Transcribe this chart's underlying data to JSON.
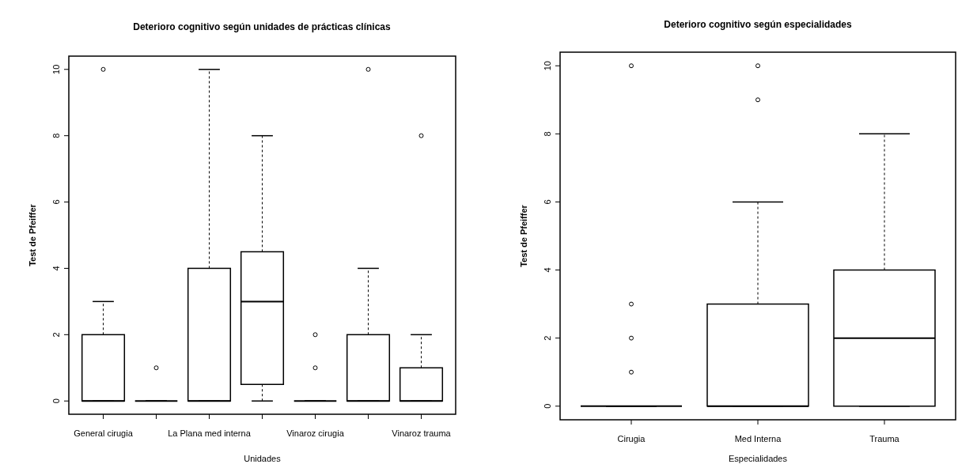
{
  "chart_data": [
    {
      "type": "box",
      "title": "Deterioro cognitivo según unidades de prácticas clínicas",
      "xlabel": "Unidades",
      "ylabel": "Test de Pfeiffer",
      "categories": [
        "General cirugia",
        null,
        "La Plana med interna",
        null,
        "Vinaroz cirugia",
        null,
        "Vinaroz trauma"
      ],
      "ylim": [
        -0.4,
        10.4
      ],
      "yticks": [
        0,
        2,
        4,
        6,
        8,
        10
      ],
      "grid": false,
      "marker": "circle",
      "boxes": [
        {
          "low": 0,
          "q1": 0,
          "median": 0,
          "q3": 2,
          "high": 3,
          "outliers": [
            10
          ]
        },
        {
          "low": 0,
          "q1": 0,
          "median": 0,
          "q3": 0,
          "high": 0,
          "outliers": [
            1
          ]
        },
        {
          "low": 0,
          "q1": 0,
          "median": 0,
          "q3": 4,
          "high": 10
        },
        {
          "low": 0,
          "q1": 0.5,
          "median": 3,
          "q3": 4.5,
          "high": 8
        },
        {
          "low": 0,
          "q1": 0,
          "median": 0,
          "q3": 0,
          "high": 0,
          "outliers": [
            1,
            2
          ]
        },
        {
          "low": 0,
          "q1": 0,
          "median": 0,
          "q3": 2,
          "high": 4,
          "outliers": [
            10
          ]
        },
        {
          "low": 0,
          "q1": 0,
          "median": 0,
          "q3": 1,
          "high": 2,
          "outliers": [
            8
          ]
        }
      ]
    },
    {
      "type": "box",
      "title": "Deterioro cognitivo según especialidades",
      "xlabel": "Especialidades",
      "ylabel": "Test de Pfeiffer",
      "categories": [
        "Cirugia",
        "Med Interna",
        "Trauma"
      ],
      "ylim": [
        -0.4,
        10.4
      ],
      "yticks": [
        0,
        2,
        4,
        6,
        8,
        10
      ],
      "grid": false,
      "marker": "circle",
      "boxes": [
        {
          "low": 0,
          "q1": 0,
          "median": 0,
          "q3": 0,
          "high": 0,
          "outliers": [
            1,
            2,
            3,
            10
          ]
        },
        {
          "low": 0,
          "q1": 0,
          "median": 0,
          "q3": 3,
          "high": 6,
          "outliers": [
            9,
            10
          ]
        },
        {
          "low": 0,
          "q1": 0,
          "median": 2,
          "q3": 4,
          "high": 8
        }
      ]
    }
  ]
}
